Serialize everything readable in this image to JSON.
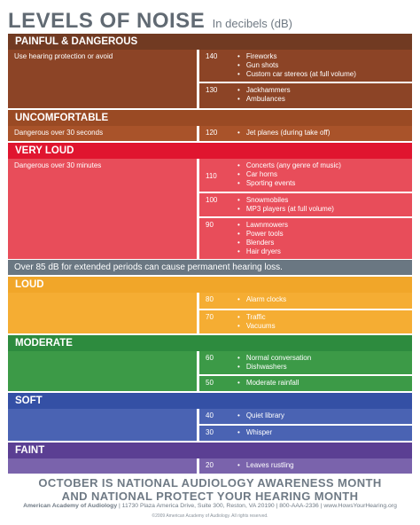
{
  "title": {
    "main": "LEVELS OF NOISE",
    "sub": "In decibels (dB)"
  },
  "colors": {
    "painful": "#713a22",
    "painful_body": "#8c4426",
    "uncomfortable": "#9a4a24",
    "uncomfortable_body": "#a9532a",
    "very_loud": "#e0152f",
    "very_loud_body": "#e84d5a",
    "loud": "#f1a629",
    "loud_body": "#f5ad33",
    "moderate": "#2d8b3e",
    "moderate_body": "#3c9a47",
    "soft": "#3450a5",
    "soft_body": "#4a63b3",
    "faint": "#5b3f93",
    "faint_body": "#7a63ac",
    "note": "#6a7782",
    "text_gray": "#6f7a85"
  },
  "sections": {
    "painful": {
      "header": "PAINFUL & DANGEROUS",
      "left": "Use hearing protection or avoid",
      "levels": [
        {
          "db": "140",
          "items": [
            "Fireworks",
            "Gun shots",
            "Custom car stereos (at full volume)"
          ]
        },
        {
          "db": "130",
          "items": [
            "Jackhammers",
            "Ambulances"
          ]
        }
      ]
    },
    "uncomfortable": {
      "header": "UNCOMFORTABLE",
      "left": "Dangerous over 30 seconds",
      "levels": [
        {
          "db": "120",
          "items": [
            "Jet planes (during take off)"
          ]
        }
      ]
    },
    "very_loud": {
      "header": "VERY LOUD",
      "left": "Dangerous over 30 minutes",
      "levels": [
        {
          "db": "110",
          "items": [
            "Concerts (any genre of music)",
            "Car horns",
            "Sporting events"
          ]
        },
        {
          "db": "100",
          "items": [
            "Snowmobiles",
            "MP3 players (at full volume)"
          ]
        },
        {
          "db": "90",
          "items": [
            "Lawnmowers",
            "Power tools",
            "Blenders",
            "Hair dryers"
          ]
        }
      ]
    },
    "note": "Over 85 dB for extended periods can cause permanent hearing loss.",
    "loud": {
      "header": "LOUD",
      "levels": [
        {
          "db": "80",
          "items": [
            "Alarm clocks"
          ]
        },
        {
          "db": "70",
          "items": [
            "Traffic",
            "Vacuums"
          ]
        }
      ]
    },
    "moderate": {
      "header": "MODERATE",
      "levels": [
        {
          "db": "60",
          "items": [
            "Normal conversation",
            "Dishwashers"
          ]
        },
        {
          "db": "50",
          "items": [
            "Moderate rainfall"
          ]
        }
      ]
    },
    "soft": {
      "header": "SOFT",
      "levels": [
        {
          "db": "40",
          "items": [
            "Quiet library"
          ]
        },
        {
          "db": "30",
          "items": [
            "Whisper"
          ]
        }
      ]
    },
    "faint": {
      "header": "FAINT",
      "levels": [
        {
          "db": "20",
          "items": [
            "Leaves rustling"
          ]
        }
      ]
    }
  },
  "footer": {
    "line1": "OCTOBER IS NATIONAL AUDIOLOGY AWARENESS MONTH",
    "line2": "AND NATIONAL PROTECT YOUR HEARING MONTH",
    "org": "American Academy of Audiology",
    "contact": " | 11730 Plaza America Drive, Suite 300, Reston, VA 20190 | 800-AAA-2336 | www.HowsYourHearing.org",
    "copyright": "©2009 American Academy of Audiology. All rights reserved."
  },
  "bullet": "•"
}
